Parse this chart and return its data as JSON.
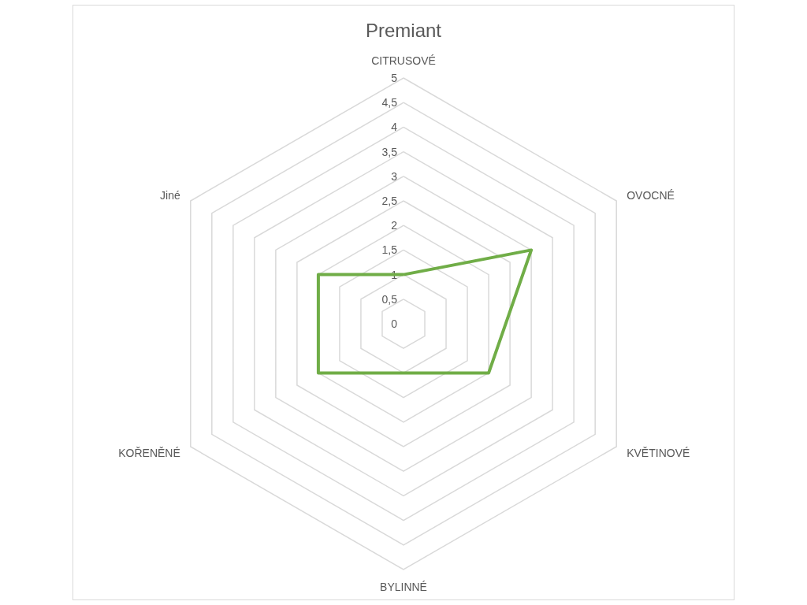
{
  "chart_data": {
    "type": "radar",
    "title": "Premiant",
    "categories": [
      "CITRUSOVÉ",
      "OVOCNÉ",
      "KVĚTINOVÉ",
      "BYLINNÉ",
      "KOŘENĚNÉ",
      "Jiné"
    ],
    "series": [
      {
        "color": "#70ad47",
        "values": [
          1,
          3,
          2,
          1,
          2,
          2
        ]
      }
    ],
    "ylim": [
      0,
      5
    ],
    "yticks": [
      0,
      {
        "value": 0.5,
        "label": "0,5"
      },
      1,
      {
        "value": 1.5,
        "label": "1,5"
      },
      2,
      {
        "value": 2.5,
        "label": "2,5"
      },
      3,
      {
        "value": 3.5,
        "label": "3,5"
      },
      4,
      {
        "value": 4.5,
        "label": "4,5"
      },
      5
    ],
    "grid": true,
    "marker": "none"
  }
}
